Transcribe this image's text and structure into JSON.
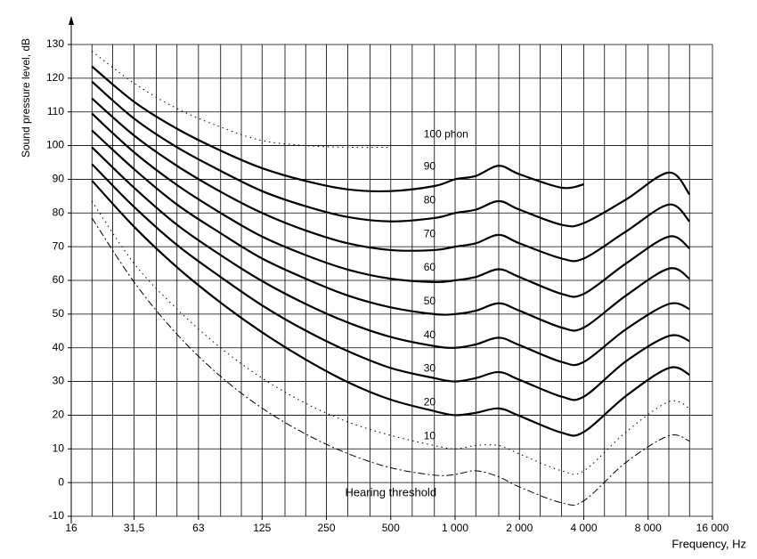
{
  "chart_data": {
    "type": "line",
    "xlabel": "Frequency, Hz",
    "ylabel": "Sound pressure level, dB",
    "x_scale": "log",
    "x": [
      20,
      31.5,
      50,
      80,
      125,
      200,
      315,
      500,
      800,
      1000,
      1250,
      1600,
      2000,
      3150,
      4000,
      6300,
      10000,
      12500
    ],
    "xlim": [
      16,
      16000
    ],
    "xticks": [
      16,
      {
        "value": 31.5,
        "label": "31,5"
      },
      63,
      125,
      250,
      500,
      {
        "value": 1000,
        "label": "1 000"
      },
      {
        "value": 2000,
        "label": "2 000"
      },
      {
        "value": 4000,
        "label": "4 000"
      },
      {
        "value": 8000,
        "label": "8 000"
      },
      {
        "value": 16000,
        "label": "16 000"
      }
    ],
    "xgrid": [
      20,
      25,
      31.5,
      40,
      50,
      63,
      80,
      100,
      125,
      160,
      200,
      250,
      315,
      400,
      500,
      630,
      800,
      1000,
      1250,
      1600,
      2000,
      2500,
      3150,
      4000,
      5000,
      6300,
      8000,
      10000,
      12500,
      16000
    ],
    "ylim": [
      -10,
      130
    ],
    "yticks": [
      -10,
      0,
      10,
      20,
      30,
      40,
      50,
      60,
      70,
      80,
      90,
      100,
      110,
      120,
      130
    ],
    "grid": true,
    "series": [
      {
        "name": "Hearing threshold",
        "color": "#000000",
        "dash": "dashed",
        "values": [
          78.5,
          59.5,
          44.0,
          31.5,
          22.1,
          14.4,
          8.6,
          4.4,
          2.2,
          2.4,
          3.5,
          1.7,
          -1.3,
          -6.0,
          -5.4,
          6.0,
          13.9,
          12.3
        ]
      },
      {
        "name": "10",
        "color": "#000000",
        "dash": "dotted",
        "values": [
          83.5,
          65.0,
          51.5,
          40.0,
          31.0,
          23.5,
          18.0,
          14.0,
          11.0,
          10.0,
          11.0,
          11.0,
          8.5,
          3.5,
          3.5,
          15.0,
          24.0,
          22.0
        ]
      },
      {
        "name": "20",
        "color": "#000000",
        "dash": "solid",
        "values": [
          89.6,
          75.9,
          63.9,
          53.4,
          44.6,
          36.5,
          29.8,
          24.6,
          21.2,
          20.0,
          20.7,
          22.0,
          19.8,
          14.8,
          15.0,
          25.7,
          34.0,
          32.0
        ]
      },
      {
        "name": "30",
        "color": "#000000",
        "dash": "solid",
        "values": [
          94.5,
          81.8,
          70.5,
          61.0,
          52.6,
          45.1,
          39.0,
          34.0,
          31.0,
          30.0,
          31.0,
          32.8,
          30.5,
          25.5,
          25.5,
          36.0,
          43.5,
          42.0
        ]
      },
      {
        "name": "40",
        "color": "#000000",
        "dash": "solid",
        "values": [
          99.5,
          87.5,
          76.5,
          67.5,
          59.8,
          53.0,
          47.5,
          43.2,
          40.5,
          40.0,
          41.0,
          43.0,
          40.8,
          35.8,
          35.8,
          45.5,
          53.0,
          51.5
        ]
      },
      {
        "name": "50",
        "color": "#000000",
        "dash": "solid",
        "values": [
          104.5,
          93.0,
          82.5,
          74.0,
          66.5,
          60.5,
          55.5,
          52.0,
          50.0,
          50.0,
          51.0,
          53.2,
          51.0,
          46.0,
          46.0,
          55.5,
          63.5,
          60.5
        ]
      },
      {
        "name": "60",
        "color": "#000000",
        "dash": "solid",
        "values": [
          109.5,
          98.0,
          88.3,
          80.0,
          73.0,
          67.5,
          63.2,
          60.5,
          59.5,
          60.0,
          61.0,
          63.3,
          61.0,
          56.0,
          56.0,
          65.0,
          73.0,
          69.5
        ]
      },
      {
        "name": "70",
        "color": "#000000",
        "dash": "solid",
        "values": [
          114.0,
          103.0,
          94.0,
          86.3,
          80.0,
          74.8,
          71.0,
          69.0,
          69.0,
          70.0,
          71.0,
          73.5,
          71.0,
          66.5,
          66.5,
          74.5,
          82.5,
          77.5
        ]
      },
      {
        "name": "80",
        "color": "#000000",
        "dash": "solid",
        "values": [
          119.0,
          108.0,
          99.5,
          92.5,
          86.5,
          82.0,
          78.8,
          77.5,
          78.5,
          80.0,
          81.0,
          83.5,
          81.0,
          76.5,
          77.0,
          84.0,
          92.0,
          85.5
        ]
      },
      {
        "name": "90",
        "color": "#000000",
        "dash": "solid",
        "values": [
          123.5,
          113.0,
          105.0,
          98.5,
          93.3,
          89.5,
          87.0,
          86.5,
          88.0,
          90.0,
          91.0,
          94.0,
          91.5,
          87.5,
          88.5,
          null,
          null,
          null
        ]
      },
      {
        "name": "100 phon",
        "color": "#000000",
        "dash": "dotted",
        "values": [
          128.0,
          118.5,
          111.0,
          105.5,
          101.5,
          100.0,
          99.5,
          99.5,
          null,
          null,
          null,
          null,
          null,
          null,
          null,
          null,
          null,
          null
        ]
      }
    ]
  }
}
